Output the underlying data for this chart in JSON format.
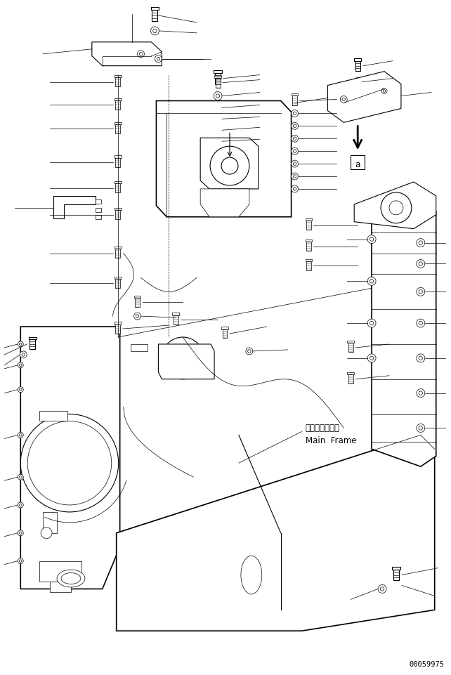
{
  "background_color": "#ffffff",
  "line_color": "#000000",
  "text_color": "#000000",
  "fig_width": 6.42,
  "fig_height": 9.61,
  "dpi": 100,
  "watermark": "00059975",
  "label_main_frame_ja": "メインフレーム",
  "label_main_frame_en": "Main  Frame",
  "inset_arrow_label": "a",
  "lw_thin": 0.5,
  "lw_med": 0.8,
  "lw_thick": 1.2
}
